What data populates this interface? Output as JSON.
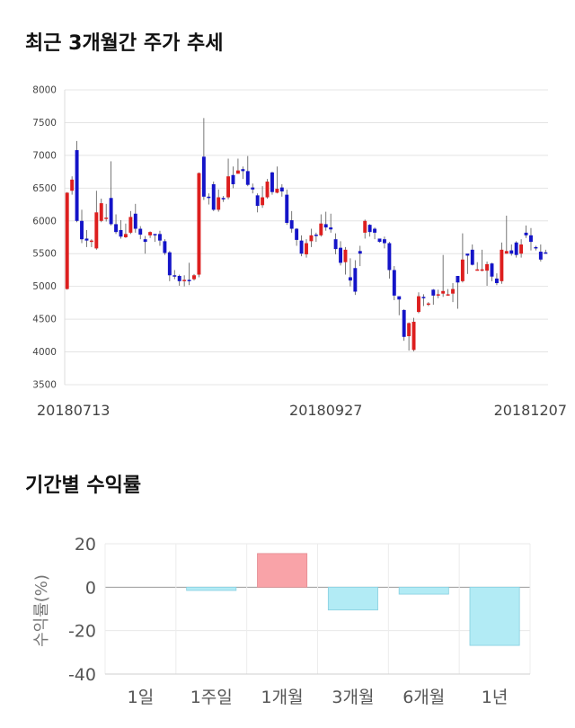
{
  "section_titles": {
    "price_trend": "최근 3개월간 주가 추세",
    "returns": "기간별 수익률"
  },
  "colors": {
    "up": "#dd1f1f",
    "down": "#1414c8",
    "wick": "#555555",
    "bar_positive": "#f9a3a8",
    "bar_negative": "#b2ebf5",
    "bar_negative_edge": "#86cfe0"
  },
  "chart_data": [
    {
      "type": "candlestick",
      "title": "",
      "ylim": [
        3500,
        8000
      ],
      "y_ticks": [
        3500,
        4000,
        4500,
        5000,
        5500,
        6000,
        6500,
        7000,
        7500,
        8000
      ],
      "x_labels": [
        {
          "index": 0,
          "label": "20180713"
        },
        {
          "index": 53,
          "label": "20180927"
        },
        {
          "index": 101,
          "label": "20181207"
        }
      ],
      "grid": true,
      "candles": [
        [
          4960,
          6430,
          6440,
          4950
        ],
        [
          6460,
          6630,
          6680,
          6400
        ],
        [
          7080,
          6000,
          7220,
          5980
        ],
        [
          6000,
          5720,
          6170,
          5660
        ],
        [
          5730,
          5700,
          5860,
          5600
        ],
        [
          5700,
          5700,
          5720,
          5600
        ],
        [
          5580,
          6130,
          6460,
          5560
        ],
        [
          6000,
          6270,
          6340,
          5980
        ],
        [
          6030,
          6050,
          6260,
          5990
        ],
        [
          6350,
          5950,
          6910,
          5930
        ],
        [
          5950,
          5830,
          6100,
          5800
        ],
        [
          5860,
          5760,
          6010,
          5730
        ],
        [
          5750,
          5800,
          5960,
          5740
        ],
        [
          5820,
          6060,
          6150,
          5800
        ],
        [
          6110,
          5880,
          6260,
          5820
        ],
        [
          5880,
          5790,
          5920,
          5720
        ],
        [
          5720,
          5680,
          5770,
          5500
        ],
        [
          5780,
          5830,
          5840,
          5740
        ],
        [
          5800,
          5790,
          5800,
          5680
        ],
        [
          5800,
          5700,
          5850,
          5620
        ],
        [
          5690,
          5510,
          5720,
          5480
        ],
        [
          5520,
          5170,
          5540,
          5080
        ],
        [
          5170,
          5160,
          5250,
          5110
        ],
        [
          5160,
          5080,
          5180,
          5010
        ],
        [
          5080,
          5100,
          5170,
          5000
        ],
        [
          5100,
          5090,
          5360,
          5020
        ],
        [
          5110,
          5170,
          5190,
          5090
        ],
        [
          5180,
          6730,
          6740,
          5140
        ],
        [
          6980,
          6370,
          7570,
          6320
        ],
        [
          6370,
          6360,
          6420,
          6250
        ],
        [
          6560,
          6170,
          6600,
          6150
        ],
        [
          6170,
          6360,
          6480,
          6140
        ],
        [
          6350,
          6340,
          6380,
          6290
        ],
        [
          6360,
          6680,
          6950,
          6330
        ],
        [
          6700,
          6560,
          6830,
          6500
        ],
        [
          6720,
          6770,
          6950,
          6720
        ],
        [
          6790,
          6760,
          6830,
          6640
        ],
        [
          6760,
          6550,
          6990,
          6530
        ],
        [
          6510,
          6480,
          6570,
          6420
        ],
        [
          6390,
          6230,
          6420,
          6130
        ],
        [
          6240,
          6360,
          6530,
          6200
        ],
        [
          6360,
          6600,
          6640,
          6340
        ],
        [
          6740,
          6440,
          6750,
          6400
        ],
        [
          6430,
          6490,
          6830,
          6420
        ],
        [
          6510,
          6450,
          6560,
          6370
        ],
        [
          6400,
          5970,
          6480,
          5940
        ],
        [
          6010,
          5880,
          6150,
          5820
        ],
        [
          5880,
          5710,
          5890,
          5620
        ],
        [
          5700,
          5500,
          5780,
          5460
        ],
        [
          5490,
          5660,
          5720,
          5440
        ],
        [
          5690,
          5780,
          5880,
          5600
        ],
        [
          5790,
          5780,
          5820,
          5680
        ],
        [
          5780,
          5960,
          6100,
          5760
        ],
        [
          5950,
          5900,
          6140,
          5850
        ],
        [
          5900,
          5870,
          6110,
          5820
        ],
        [
          5720,
          5570,
          5810,
          5490
        ],
        [
          5590,
          5360,
          5690,
          5320
        ],
        [
          5370,
          5560,
          5600,
          5180
        ],
        [
          5140,
          5090,
          5430,
          5000
        ],
        [
          5280,
          4920,
          5400,
          4870
        ],
        [
          5540,
          5500,
          5620,
          5310
        ],
        [
          5820,
          6000,
          6020,
          5730
        ],
        [
          5940,
          5830,
          5950,
          5760
        ],
        [
          5880,
          5820,
          5900,
          5720
        ],
        [
          5730,
          5680,
          5730,
          5670
        ],
        [
          5720,
          5660,
          5760,
          5580
        ],
        [
          5660,
          5250,
          5680,
          5120
        ],
        [
          5250,
          4860,
          5310,
          4790
        ],
        [
          4850,
          4800,
          4840,
          4560
        ],
        [
          4640,
          4230,
          4650,
          4170
        ],
        [
          4240,
          4440,
          4450,
          4020
        ],
        [
          4030,
          4460,
          4520,
          4010
        ],
        [
          4610,
          4850,
          4910,
          4590
        ],
        [
          4840,
          4830,
          4880,
          4700
        ],
        [
          4720,
          4740,
          4760,
          4700
        ],
        [
          4950,
          4860,
          4960,
          4720
        ],
        [
          4860,
          4880,
          4950,
          4820
        ],
        [
          4890,
          4930,
          5480,
          4840
        ],
        [
          4880,
          4880,
          4960,
          4860
        ],
        [
          4890,
          4960,
          5050,
          4760
        ],
        [
          5160,
          5060,
          5160,
          4660
        ],
        [
          5080,
          5410,
          5810,
          5060
        ],
        [
          5500,
          5470,
          5490,
          5190
        ],
        [
          5560,
          5330,
          5640,
          5320
        ],
        [
          5260,
          5260,
          5370,
          5240
        ],
        [
          5240,
          5260,
          5560,
          5230
        ],
        [
          5240,
          5340,
          5380,
          5010
        ],
        [
          5350,
          5150,
          5360,
          5080
        ],
        [
          5120,
          5050,
          5200,
          5020
        ],
        [
          5080,
          5560,
          5670,
          5040
        ],
        [
          5500,
          5540,
          6080,
          5500
        ],
        [
          5550,
          5500,
          5640,
          5470
        ],
        [
          5670,
          5480,
          5690,
          5440
        ],
        [
          5500,
          5640,
          5720,
          5440
        ],
        [
          5820,
          5780,
          5930,
          5740
        ],
        [
          5780,
          5680,
          5890,
          5550
        ],
        [
          5600,
          5580,
          5620,
          5550
        ],
        [
          5530,
          5410,
          5640,
          5380
        ],
        [
          5520,
          5510,
          5560,
          5500
        ]
      ]
    },
    {
      "type": "bar",
      "title": "",
      "ylabel": "수익률(%)",
      "ylim": [
        -40,
        20
      ],
      "y_ticks": [
        20,
        0,
        -20,
        -40
      ],
      "categories": [
        "1일",
        "1주일",
        "1개월",
        "3개월",
        "6개월",
        "1년"
      ],
      "values": [
        0,
        -1.5,
        15.5,
        -10.5,
        -3.2,
        -26.8
      ],
      "grid": true
    }
  ]
}
